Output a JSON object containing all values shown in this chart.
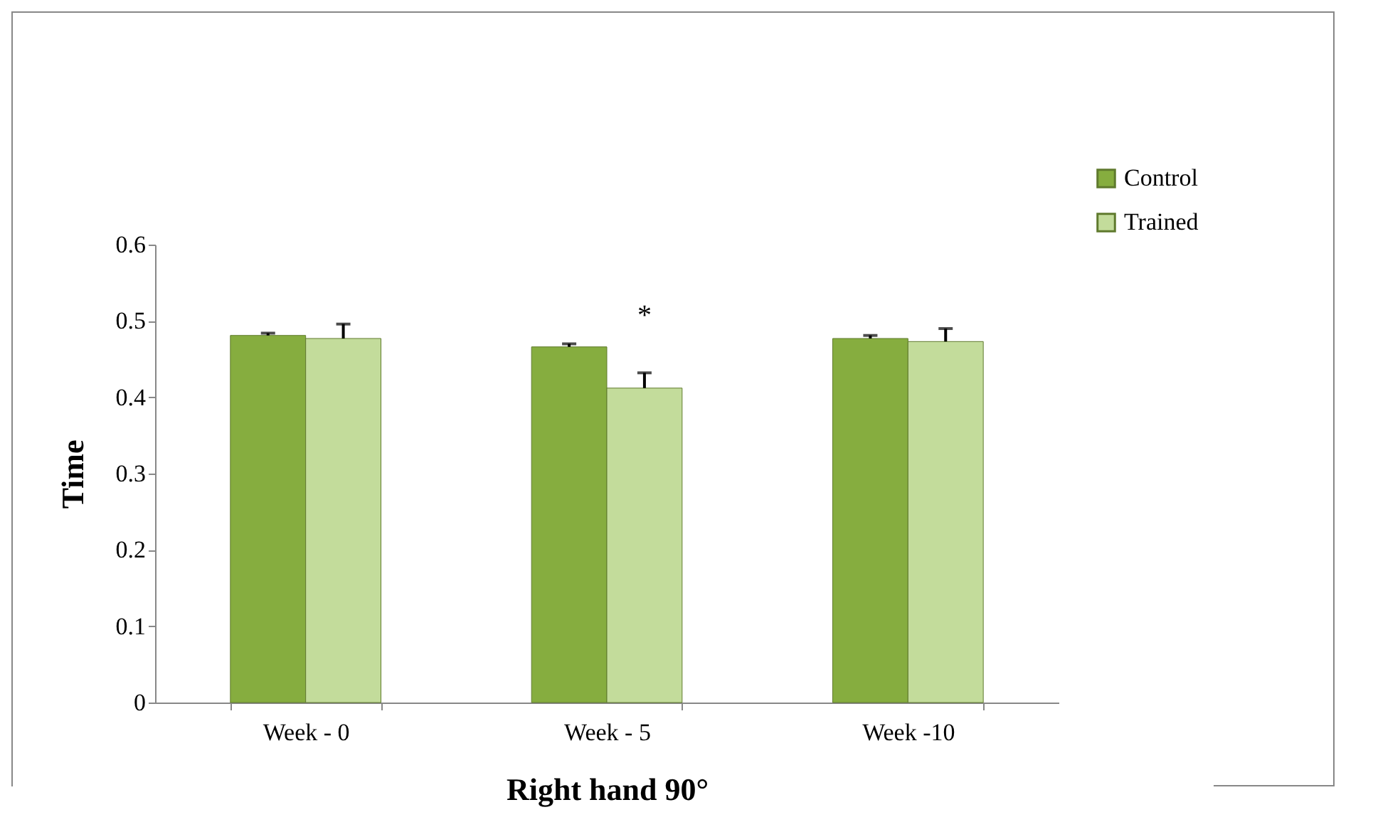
{
  "chart_data": {
    "type": "bar",
    "xlabel": "Right hand 90°",
    "ylabel": "Time",
    "categories": [
      "Week - 0",
      "Week - 5",
      "Week -10"
    ],
    "series": [
      {
        "name": "Control",
        "color": "#86ad3f",
        "values": [
          0.481,
          0.466,
          0.477
        ],
        "errors": [
          [
            0.481,
            0.484
          ],
          [
            0.466,
            0.47
          ],
          [
            0.477,
            0.481
          ]
        ]
      },
      {
        "name": "Trained",
        "color": "#c3dc9b",
        "values": [
          0.477,
          0.412,
          0.473
        ],
        "errors": [
          [
            0.477,
            0.496
          ],
          [
            0.412,
            0.432
          ],
          [
            0.473,
            0.49
          ]
        ]
      }
    ],
    "ylim": [
      0,
      0.6
    ],
    "yticks": [
      0,
      0.1,
      0.2,
      0.3,
      0.4,
      0.5,
      0.6
    ],
    "grid": false,
    "legend": "top right",
    "annotations": [
      {
        "text": "*",
        "x": "Week - 5",
        "y": 0.432
      }
    ]
  }
}
